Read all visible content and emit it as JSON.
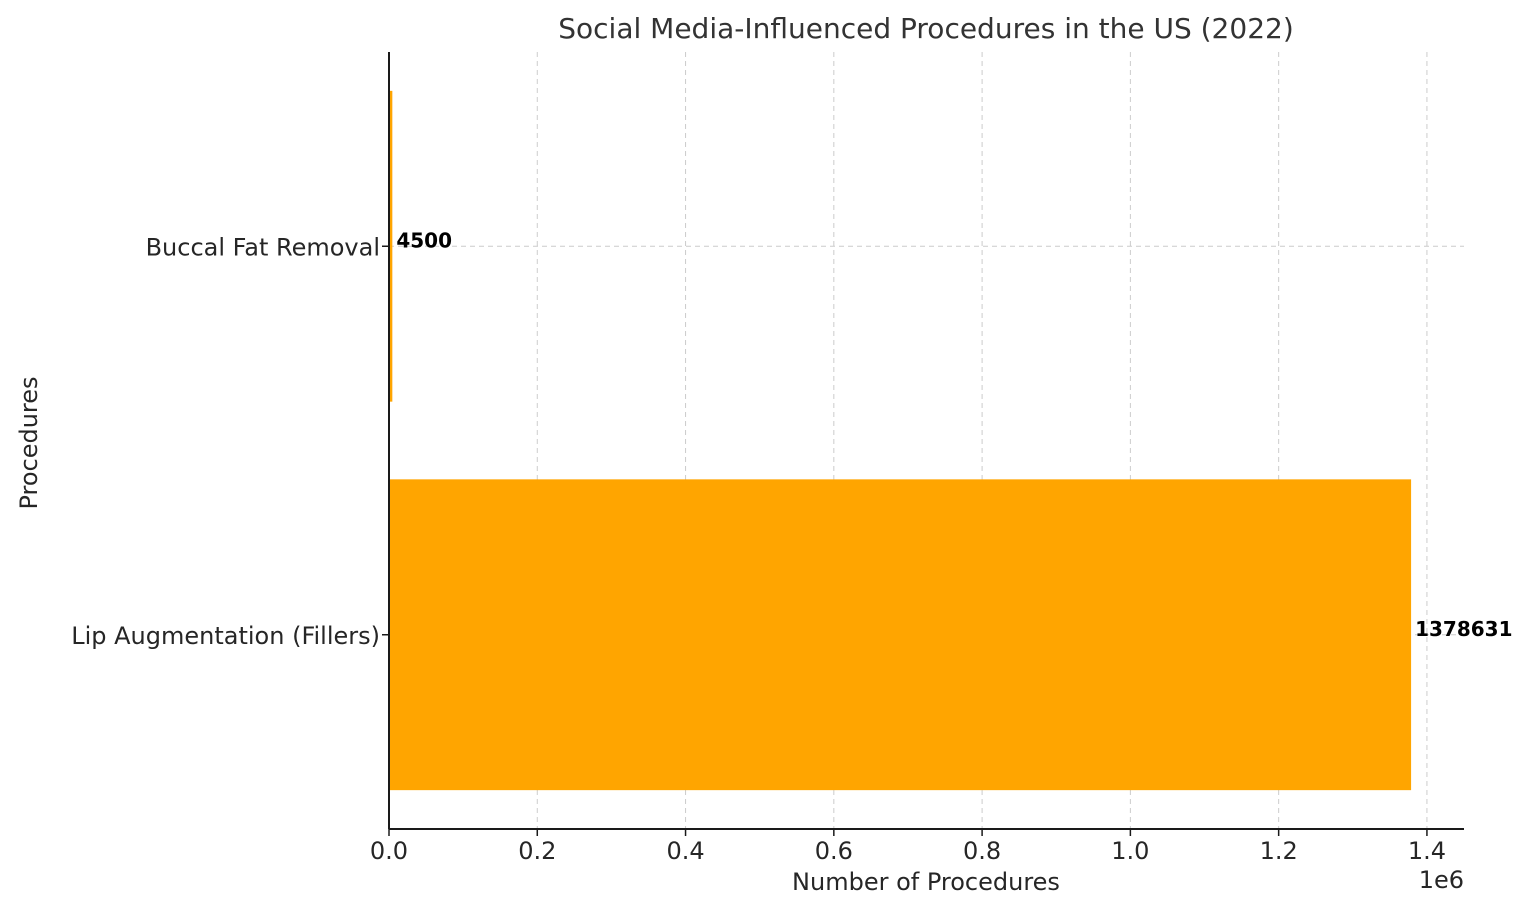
{
  "chart_data": {
    "type": "bar",
    "orientation": "horizontal",
    "title": "Social Media-Influenced Procedures in the US (2022)",
    "xlabel": "Number of Procedures",
    "ylabel": "Procedures",
    "categories": [
      "Lip Augmentation (Fillers)",
      "Buccal Fat Removal"
    ],
    "values": [
      1378631,
      4500
    ],
    "data_labels": [
      "1378631",
      "4500"
    ],
    "xlim": [
      0,
      1450000
    ],
    "xticks": [
      0,
      200000,
      400000,
      600000,
      800000,
      1000000,
      1200000,
      1400000
    ],
    "xtick_labels": [
      "0.0",
      "0.2",
      "0.4",
      "0.6",
      "0.8",
      "1.0",
      "1.2",
      "1.4"
    ],
    "x_offset_label": "1e6",
    "bar_color": "#FFA500",
    "grid": true,
    "legend": "none"
  }
}
